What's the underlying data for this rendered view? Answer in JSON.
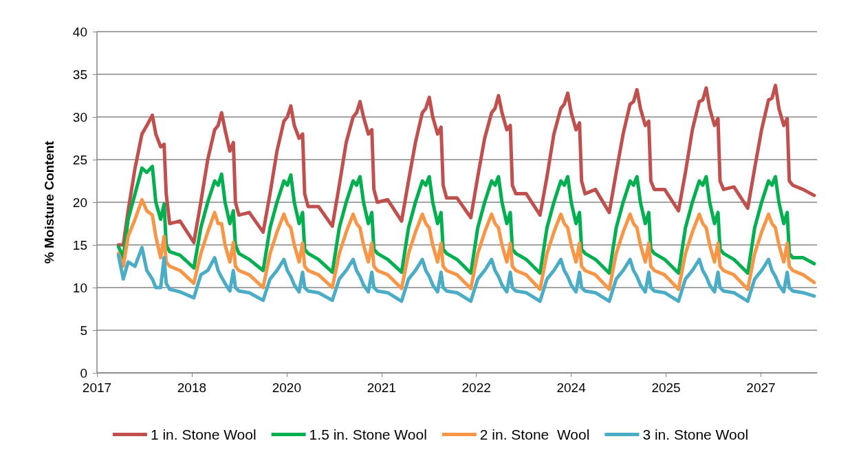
{
  "chart_data": {
    "type": "line",
    "ylabel": "% Moisture Content",
    "x": [
      2017.31,
      2017.38,
      2017.45,
      2017.55,
      2017.65,
      2017.72,
      2017.8,
      2017.85,
      2017.92,
      2017.97,
      2018,
      2018.05,
      2018.2,
      2018.4,
      2018.5,
      2018.6,
      2018.7,
      2018.75,
      2018.8,
      2018.85,
      2018.92,
      2018.97,
      2019,
      2019.05,
      2019.2,
      2019.4,
      2019.5,
      2019.6,
      2019.7,
      2019.75,
      2019.8,
      2019.85,
      2019.92,
      2019.97,
      2020,
      2020.05,
      2020.2,
      2020.4,
      2020.5,
      2020.6,
      2020.7,
      2020.75,
      2020.8,
      2020.85,
      2020.92,
      2020.97,
      2021,
      2021.05,
      2021.2,
      2021.4,
      2021.5,
      2021.6,
      2021.7,
      2021.75,
      2021.8,
      2021.85,
      2021.92,
      2021.97,
      2022,
      2022.05,
      2022.2,
      2022.4,
      2022.5,
      2022.6,
      2022.7,
      2022.75,
      2022.8,
      2022.85,
      2022.92,
      2022.97,
      2023,
      2023.05,
      2023.2,
      2023.4,
      2023.5,
      2023.6,
      2023.7,
      2023.75,
      2023.8,
      2023.85,
      2023.92,
      2023.97,
      2024,
      2024.05,
      2024.2,
      2024.4,
      2024.5,
      2024.6,
      2024.7,
      2024.75,
      2024.8,
      2024.85,
      2024.92,
      2024.97,
      2025,
      2025.05,
      2025.2,
      2025.4,
      2025.5,
      2025.6,
      2025.7,
      2025.75,
      2025.8,
      2025.85,
      2025.92,
      2025.97,
      2026,
      2026.05,
      2026.2,
      2026.4,
      2026.5,
      2026.6,
      2026.7,
      2026.75,
      2026.8,
      2026.85,
      2026.92,
      2026.97,
      2027,
      2027.05,
      2027.2,
      2027.36
    ],
    "series": [
      {
        "name": "1 in. Stone Wool",
        "color": "#c0504d",
        "values": [
          15,
          15,
          19,
          24,
          28,
          29,
          30.2,
          28,
          26.5,
          26.8,
          21,
          17.5,
          17.8,
          15.3,
          20,
          25,
          28.5,
          29,
          30.5,
          28.5,
          26,
          27,
          20,
          18.5,
          18.8,
          16.5,
          21,
          26,
          29.5,
          30,
          31.3,
          29,
          27.5,
          28,
          21,
          19.5,
          19.5,
          17.2,
          22,
          27,
          30,
          30.5,
          31.8,
          30,
          28,
          28.5,
          21.5,
          20,
          20.3,
          17.8,
          22.5,
          27,
          30.5,
          31,
          32.3,
          30,
          28,
          28.8,
          22,
          20.5,
          20.5,
          18.2,
          23,
          27.5,
          30.5,
          31,
          32.5,
          30.5,
          28.5,
          29,
          22,
          21,
          21,
          18.5,
          23,
          28,
          31,
          31.5,
          32.8,
          30.5,
          28.5,
          29.3,
          22.5,
          21,
          21.5,
          18.8,
          23.5,
          28,
          31.5,
          31.8,
          33.2,
          31,
          29,
          29.5,
          22.5,
          21.5,
          21.5,
          19,
          23.5,
          28.5,
          31.8,
          32,
          33.4,
          31,
          29,
          29.8,
          22.5,
          21.5,
          21.8,
          19.3,
          24,
          28.5,
          32,
          32.2,
          33.7,
          31,
          29,
          29.8,
          22.5,
          22,
          21.5,
          20.8
        ]
      },
      {
        "name": "1.5 in. Stone Wool",
        "color": "#00b050",
        "values": [
          14.8,
          13.5,
          18,
          21,
          24,
          23.5,
          24.2,
          20,
          18,
          19.8,
          15,
          14.2,
          13.8,
          12.3,
          17,
          20,
          22.5,
          22,
          23.3,
          20,
          17.5,
          19,
          15,
          14,
          13.3,
          12,
          17,
          20,
          22.5,
          22,
          23.2,
          20,
          17.5,
          18.8,
          14.5,
          14,
          13.3,
          11.8,
          17,
          20,
          22.5,
          22,
          23,
          20,
          17.5,
          18.8,
          14.5,
          14,
          13.3,
          11.8,
          17,
          20,
          22.5,
          22,
          23,
          20,
          17.5,
          18.8,
          14.5,
          14,
          13.3,
          11.7,
          17,
          20,
          22.5,
          22,
          23,
          20,
          17.5,
          18.8,
          14.5,
          14,
          13.3,
          11.7,
          17,
          20,
          22.5,
          22,
          23,
          20,
          17.5,
          18.8,
          14.5,
          14,
          13.3,
          11.7,
          17,
          20,
          22.5,
          22,
          23,
          20,
          17.5,
          18.8,
          14.5,
          14,
          13.3,
          11.7,
          17,
          20,
          22.5,
          22,
          23,
          20,
          17.5,
          18.8,
          14.5,
          14,
          13.3,
          11.7,
          17,
          20,
          22.5,
          22,
          23,
          20,
          17.5,
          18.8,
          14,
          13.5,
          13.5,
          12.8
        ]
      },
      {
        "name": "2 in. Stone  Wool",
        "color": "#f79646",
        "values": [
          14,
          12.5,
          16,
          18,
          20.3,
          19,
          18.5,
          16,
          13.5,
          16,
          13,
          12.5,
          12,
          10.5,
          14,
          16.5,
          18.8,
          17.5,
          17.5,
          15,
          13,
          15.3,
          12.5,
          12,
          11.5,
          10,
          14,
          16.5,
          18.6,
          17.5,
          17,
          15,
          13,
          15.2,
          12.5,
          12,
          11.5,
          10,
          14,
          16.5,
          18.6,
          17.5,
          17,
          15,
          13,
          15.2,
          12.5,
          12,
          11.5,
          9.9,
          14,
          16.5,
          18.6,
          17.5,
          17,
          15,
          13,
          15.2,
          12.5,
          12,
          11.5,
          9.9,
          14,
          16.5,
          18.6,
          17.5,
          17,
          15,
          13,
          15.2,
          12.5,
          12,
          11.5,
          9.8,
          14,
          16.5,
          18.6,
          17.5,
          17,
          15,
          13,
          15.2,
          12.5,
          12,
          11.5,
          9.8,
          14,
          16.5,
          18.6,
          17.5,
          17,
          15,
          13,
          15.2,
          12.5,
          12,
          11.5,
          9.8,
          14,
          16.5,
          18.6,
          17.5,
          17,
          15,
          13,
          15.2,
          12.5,
          12,
          11.5,
          9.8,
          14,
          16.5,
          18.6,
          17.5,
          17,
          15,
          13,
          15.2,
          12.5,
          12,
          11.5,
          10.6
        ]
      },
      {
        "name": "3 in. Stone Wool",
        "color": "#4bacc6",
        "values": [
          13.8,
          11,
          13,
          12.5,
          14.7,
          12,
          11,
          10,
          10,
          13.5,
          10.5,
          9.8,
          9.5,
          8.8,
          11.5,
          12,
          13.5,
          12,
          11.2,
          10.5,
          9.6,
          12,
          10,
          9.6,
          9.4,
          8.5,
          11,
          12,
          13.3,
          12,
          11.3,
          10.3,
          9.5,
          11.8,
          10,
          9.6,
          9.4,
          8.5,
          11,
          12,
          13.3,
          12,
          11.3,
          10.3,
          9.5,
          11.8,
          10,
          9.6,
          9.4,
          8.4,
          11,
          12,
          13.3,
          12,
          11.3,
          10.3,
          9.5,
          11.8,
          10,
          9.6,
          9.4,
          8.4,
          11,
          12,
          13.3,
          12,
          11.3,
          10.3,
          9.5,
          11.8,
          10,
          9.6,
          9.4,
          8.4,
          11,
          12,
          13.3,
          12,
          11.3,
          10.3,
          9.5,
          11.8,
          10,
          9.6,
          9.4,
          8.4,
          11,
          12,
          13.3,
          12,
          11.3,
          10.3,
          9.5,
          11.8,
          10,
          9.6,
          9.4,
          8.4,
          11,
          12,
          13.3,
          12,
          11.3,
          10.3,
          9.5,
          11.8,
          10,
          9.6,
          9.4,
          8.4,
          11,
          12,
          13.3,
          12,
          11.3,
          10.3,
          9.5,
          11.8,
          10,
          9.6,
          9.4,
          9
        ]
      }
    ],
    "xlim": [
      2017,
      2027.4
    ],
    "xticks": [
      {
        "value": 2017,
        "label": "2017"
      },
      {
        "value": 2018.37,
        "label": "2018"
      },
      {
        "value": 2019.74,
        "label": "2020"
      },
      {
        "value": 2021.11,
        "label": "2021"
      },
      {
        "value": 2022.48,
        "label": "2022"
      },
      {
        "value": 2023.85,
        "label": "2024"
      },
      {
        "value": 2025.22,
        "label": "2025"
      },
      {
        "value": 2026.59,
        "label": "2027"
      }
    ],
    "ylim": [
      0,
      40
    ],
    "yticks": [
      0,
      5,
      10,
      15,
      20,
      25,
      30,
      35,
      40
    ],
    "grid": "y",
    "legend": "bottom",
    "marker": "none",
    "line_style": "solid"
  }
}
